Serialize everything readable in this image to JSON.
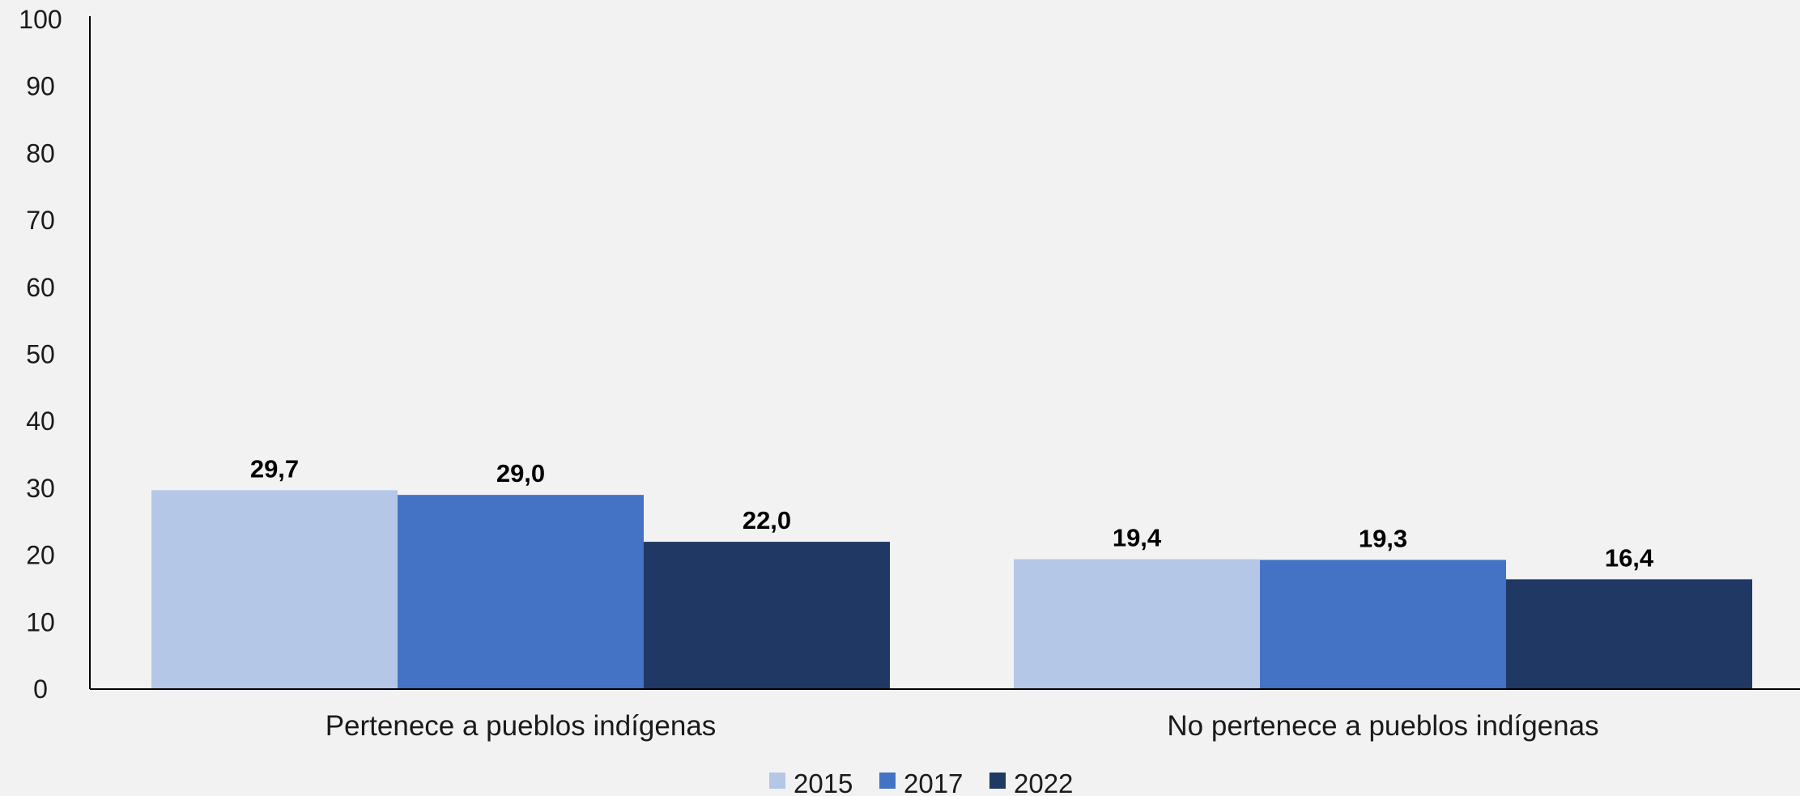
{
  "chart_data": {
    "type": "bar",
    "categories": [
      "Pertenece a pueblos indígenas",
      "No pertenece a pueblos indígenas"
    ],
    "series": [
      {
        "name": "2015",
        "color": "#b4c7e7",
        "values": [
          29.7,
          19.4
        ],
        "labels": [
          "29,7",
          "19,4"
        ]
      },
      {
        "name": "2017",
        "color": "#4472c4",
        "values": [
          29.0,
          19.3
        ],
        "labels": [
          "29,0",
          "19,3"
        ]
      },
      {
        "name": "2022",
        "color": "#203864",
        "values": [
          22.0,
          16.4
        ],
        "labels": [
          "22,0",
          "16,4"
        ]
      }
    ],
    "ylim": [
      0,
      100
    ],
    "yticks": [
      "0",
      "10",
      "20",
      "30",
      "40",
      "50",
      "60",
      "70",
      "80",
      "90",
      "100"
    ],
    "ytick_values": [
      0,
      10,
      20,
      30,
      40,
      50,
      60,
      70,
      80,
      90,
      100
    ],
    "grid": false,
    "legend": "bottom-center",
    "title": "",
    "xlabel": "",
    "ylabel": ""
  }
}
